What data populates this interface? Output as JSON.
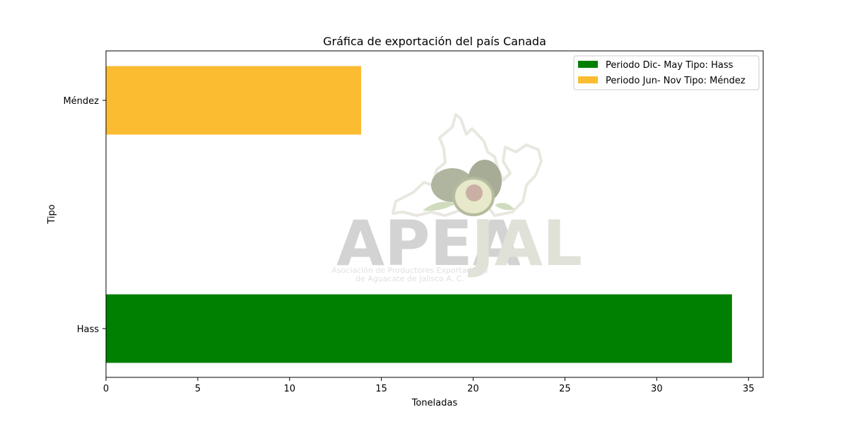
{
  "chart_data": {
    "type": "bar",
    "orientation": "horizontal",
    "title": "Gráfica de exportación del país Canada",
    "xlabel": "Toneladas",
    "ylabel": "Tipo",
    "xlim": [
      0,
      35.8
    ],
    "xticks": [
      0,
      5,
      10,
      15,
      20,
      25,
      30,
      35
    ],
    "categories": [
      "Hass",
      "Méndez"
    ],
    "series": [
      {
        "name": "Periodo Dic- May Tipo: Hass",
        "category": "Hass",
        "value": 34.1,
        "color": "#008000"
      },
      {
        "name": "Periodo Jun- Nov Tipo: Méndez",
        "category": "Méndez",
        "value": 13.9,
        "color": "#fbbc32"
      }
    ],
    "legend_position": "top-right",
    "grid": false
  },
  "watermark": {
    "logo_text_left": "APEA",
    "logo_text_right": "JAL",
    "subtitle_line1": "Asociación de Productores Exportadores",
    "subtitle_line2": "de Aguacate de Jalisco A. C."
  }
}
